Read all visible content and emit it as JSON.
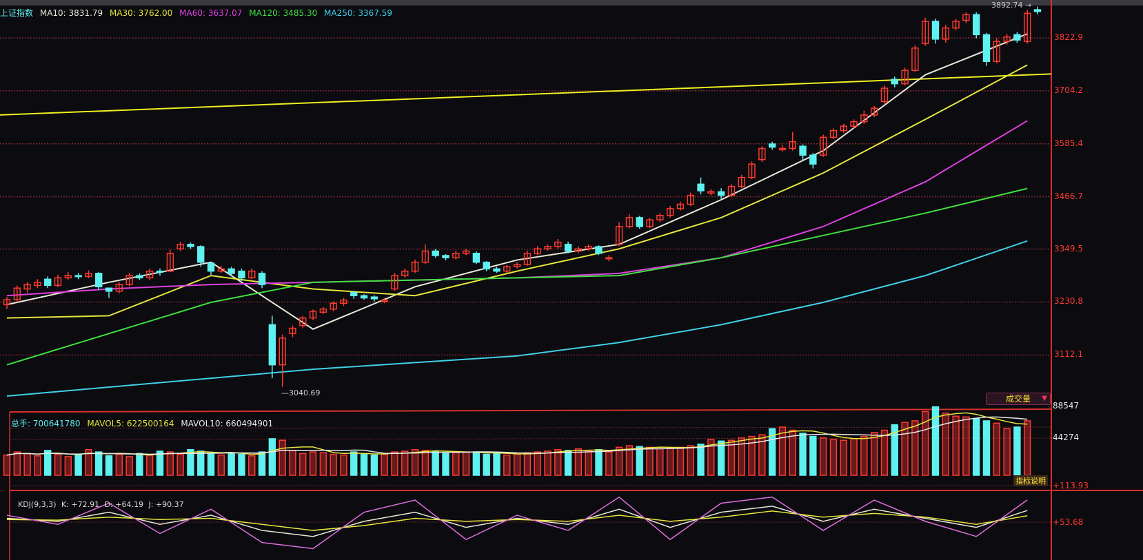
{
  "header": {
    "index_name": "上证指数",
    "ma_labels": [
      {
        "text": "MA10: 3831.79",
        "color": "#e8e8d8"
      },
      {
        "text": "MA30: 3762.00",
        "color": "#e6e63c"
      },
      {
        "text": "MA60: 3637.07",
        "color": "#e040e0"
      },
      {
        "text": "MA120: 3485.30",
        "color": "#40e040"
      },
      {
        "text": "MA250: 3367.59",
        "color": "#40d0e8"
      }
    ]
  },
  "volume_panel": {
    "total_label": "总手: 700641780",
    "mavol5_label": "MAVOL5: 622500164",
    "mavol10_label": "MAVOL10: 660494901",
    "selector_label": "成交量",
    "axis_ticks": [
      "88547",
      "44274"
    ]
  },
  "kdj_panel": {
    "title": "KDJ(9,3,3)",
    "k_label": "K: +72.91",
    "d_label": "D: +64.19",
    "j_label": "J: +90.37",
    "help_label": "指标说明",
    "axis_ticks": [
      "+113.93",
      "+53.68"
    ]
  },
  "colors": {
    "up": "#ff3b2f",
    "down": "#5ff0f0",
    "grid": "#7a2a2a",
    "axis": "#d8302a",
    "trendline": "#f0f020"
  },
  "chart_data": {
    "type": "candlestick",
    "price_axis_ticks": [
      "3822.9",
      "3704.2",
      "3585.4",
      "3466.7",
      "3349.5",
      "3230.8",
      "3112.1"
    ],
    "price_axis_values": [
      3822.9,
      3704.2,
      3585.4,
      3466.7,
      3349.5,
      3230.8,
      3112.1
    ],
    "ylim": [
      3020,
      3900
    ],
    "high_annotation": {
      "value": 3892.74,
      "label": "3892.74"
    },
    "low_annotation": {
      "value": 3040.69,
      "label": "3040.69"
    },
    "trendline": [
      3650,
      3742
    ],
    "ohlc": [
      [
        3225,
        3242,
        3215,
        3236
      ],
      [
        3236,
        3268,
        3230,
        3262
      ],
      [
        3260,
        3276,
        3252,
        3270
      ],
      [
        3268,
        3282,
        3262,
        3275
      ],
      [
        3282,
        3288,
        3262,
        3268
      ],
      [
        3268,
        3292,
        3264,
        3285
      ],
      [
        3285,
        3298,
        3280,
        3290
      ],
      [
        3290,
        3296,
        3282,
        3288
      ],
      [
        3288,
        3302,
        3284,
        3295
      ],
      [
        3295,
        3298,
        3258,
        3265
      ],
      [
        3262,
        3262,
        3240,
        3255
      ],
      [
        3255,
        3276,
        3250,
        3270
      ],
      [
        3270,
        3296,
        3266,
        3290
      ],
      [
        3290,
        3295,
        3280,
        3285
      ],
      [
        3285,
        3306,
        3280,
        3300
      ],
      [
        3300,
        3306,
        3290,
        3298
      ],
      [
        3300,
        3348,
        3298,
        3340
      ],
      [
        3350,
        3366,
        3345,
        3360
      ],
      [
        3360,
        3364,
        3350,
        3355
      ],
      [
        3355,
        3358,
        3310,
        3320
      ],
      [
        3318,
        3312,
        3292,
        3300
      ],
      [
        3300,
        3312,
        3296,
        3305
      ],
      [
        3305,
        3310,
        3288,
        3295
      ],
      [
        3300,
        3306,
        3278,
        3285
      ],
      [
        3285,
        3306,
        3282,
        3300
      ],
      [
        3295,
        3300,
        3262,
        3270
      ],
      [
        3180,
        3200,
        3060,
        3090
      ],
      [
        3090,
        3158,
        3040.69,
        3150
      ],
      [
        3160,
        3178,
        3152,
        3172
      ],
      [
        3178,
        3200,
        3172,
        3195
      ],
      [
        3195,
        3214,
        3190,
        3210
      ],
      [
        3208,
        3220,
        3204,
        3215
      ],
      [
        3215,
        3232,
        3210,
        3228
      ],
      [
        3228,
        3240,
        3222,
        3235
      ],
      [
        3252,
        3256,
        3238,
        3245
      ],
      [
        3245,
        3248,
        3236,
        3240
      ],
      [
        3242,
        3246,
        3232,
        3238
      ],
      [
        3232,
        3240,
        3228,
        3235
      ],
      [
        3260,
        3296,
        3256,
        3290
      ],
      [
        3290,
        3306,
        3285,
        3300
      ],
      [
        3300,
        3326,
        3296,
        3320
      ],
      [
        3320,
        3360,
        3316,
        3345
      ],
      [
        3345,
        3350,
        3330,
        3335
      ],
      [
        3335,
        3338,
        3324,
        3330
      ],
      [
        3330,
        3346,
        3326,
        3340
      ],
      [
        3340,
        3350,
        3336,
        3345
      ],
      [
        3340,
        3344,
        3316,
        3320
      ],
      [
        3320,
        3322,
        3300,
        3305
      ],
      [
        3305,
        3310,
        3296,
        3300
      ],
      [
        3300,
        3314,
        3296,
        3310
      ],
      [
        3310,
        3320,
        3306,
        3315
      ],
      [
        3315,
        3346,
        3312,
        3340
      ],
      [
        3340,
        3356,
        3336,
        3350
      ],
      [
        3350,
        3360,
        3346,
        3355
      ],
      [
        3355,
        3372,
        3350,
        3365
      ],
      [
        3360,
        3366,
        3340,
        3345
      ],
      [
        3345,
        3356,
        3340,
        3350
      ],
      [
        3350,
        3360,
        3346,
        3355
      ],
      [
        3355,
        3358,
        3336,
        3340
      ],
      [
        3330,
        3336,
        3322,
        3330
      ],
      [
        3360,
        3410,
        3356,
        3400
      ],
      [
        3400,
        3428,
        3396,
        3420
      ],
      [
        3420,
        3424,
        3395,
        3400
      ],
      [
        3400,
        3420,
        3396,
        3415
      ],
      [
        3415,
        3430,
        3410,
        3425
      ],
      [
        3425,
        3446,
        3420,
        3440
      ],
      [
        3440,
        3456,
        3436,
        3450
      ],
      [
        3450,
        3476,
        3446,
        3470
      ],
      [
        3495,
        3510,
        3472,
        3480
      ],
      [
        3475,
        3484,
        3470,
        3478
      ],
      [
        3478,
        3486,
        3462,
        3470
      ],
      [
        3470,
        3496,
        3466,
        3490
      ],
      [
        3490,
        3516,
        3486,
        3510
      ],
      [
        3510,
        3546,
        3506,
        3540
      ],
      [
        3550,
        3580,
        3545,
        3575
      ],
      [
        3585,
        3590,
        3572,
        3578
      ],
      [
        3572,
        3582,
        3568,
        3575
      ],
      [
        3575,
        3612,
        3570,
        3590
      ],
      [
        3580,
        3584,
        3548,
        3560
      ],
      [
        3560,
        3565,
        3530,
        3540
      ],
      [
        3560,
        3606,
        3556,
        3600
      ],
      [
        3600,
        3620,
        3596,
        3615
      ],
      [
        3615,
        3630,
        3610,
        3625
      ],
      [
        3625,
        3640,
        3620,
        3635
      ],
      [
        3635,
        3660,
        3630,
        3650
      ],
      [
        3650,
        3670,
        3645,
        3665
      ],
      [
        3680,
        3716,
        3675,
        3710
      ],
      [
        3730,
        3736,
        3712,
        3720
      ],
      [
        3720,
        3756,
        3716,
        3750
      ],
      [
        3750,
        3806,
        3746,
        3800
      ],
      [
        3810,
        3868,
        3805,
        3860
      ],
      [
        3860,
        3866,
        3810,
        3820
      ],
      [
        3820,
        3852,
        3812,
        3845
      ],
      [
        3845,
        3866,
        3840,
        3860
      ],
      [
        3862,
        3880,
        3856,
        3875
      ],
      [
        3875,
        3880,
        3822,
        3830
      ],
      [
        3830,
        3834,
        3760,
        3770
      ],
      [
        3770,
        3822,
        3766,
        3815
      ],
      [
        3815,
        3832,
        3808,
        3825
      ],
      [
        3830,
        3836,
        3812,
        3818
      ],
      [
        3815,
        3885,
        3810,
        3878
      ],
      [
        3886,
        3892.74,
        3876,
        3882
      ]
    ],
    "volume": [
      26000,
      30000,
      28000,
      25000,
      32000,
      27000,
      24000,
      26000,
      33000,
      30000,
      25000,
      27000,
      24000,
      28000,
      26000,
      31000,
      30000,
      27000,
      33000,
      31000,
      28000,
      26000,
      29000,
      27000,
      25000,
      30000,
      47000,
      45000,
      32000,
      28000,
      30000,
      29000,
      27000,
      26000,
      30000,
      28000,
      26000,
      27000,
      30000,
      31000,
      33000,
      32000,
      31000,
      28000,
      29000,
      30000,
      30000,
      27000,
      28000,
      26000,
      27000,
      29000,
      30000,
      31000,
      33000,
      32000,
      34000,
      31000,
      33000,
      30000,
      36000,
      38000,
      37000,
      36000,
      34000,
      35000,
      36000,
      38000,
      40000,
      46000,
      44000,
      45000,
      48000,
      50000,
      52000,
      60000,
      62000,
      58000,
      54000,
      50000,
      48000,
      46000,
      45000,
      47000,
      50000,
      55000,
      58000,
      65000,
      68000,
      70000,
      82000,
      88000,
      80000,
      76000,
      75000,
      73000,
      70000,
      67000,
      60000,
      62000,
      70000
    ],
    "volume_axis_max": 88547,
    "moving_averages": {
      "sample_every": 10,
      "series": [
        {
          "name": "MA10",
          "color": "#e8e8d8",
          "values": [
            3225,
            3275,
            3320,
            3170,
            3265,
            3325,
            3360,
            3460,
            3570,
            3740,
            3831.79
          ]
        },
        {
          "name": "MA30",
          "color": "#e6e63c",
          "values": [
            3195,
            3200,
            3290,
            3260,
            3245,
            3300,
            3350,
            3420,
            3520,
            3640,
            3762.0
          ]
        },
        {
          "name": "MA60",
          "color": "#e040e0",
          "values": [
            3245,
            3260,
            3270,
            3275,
            3280,
            3285,
            3295,
            3330,
            3400,
            3500,
            3637.07
          ]
        },
        {
          "name": "MA120",
          "color": "#40e040",
          "values": [
            3090,
            3160,
            3230,
            3275,
            3280,
            3285,
            3290,
            3330,
            3380,
            3430,
            3485.3
          ]
        },
        {
          "name": "MA250",
          "color": "#40d0e8",
          "values": [
            3020,
            3040,
            3060,
            3080,
            3095,
            3110,
            3140,
            3180,
            3230,
            3290,
            3367.59
          ]
        }
      ]
    },
    "kdj": {
      "sample_every": 5,
      "K": [
        60,
        55,
        70,
        50,
        65,
        40,
        30,
        55,
        70,
        45,
        60,
        50,
        75,
        45,
        70,
        80,
        55,
        75,
        60,
        45,
        72.91
      ],
      "D": [
        58,
        57,
        62,
        58,
        60,
        50,
        40,
        48,
        60,
        55,
        58,
        55,
        65,
        55,
        62,
        72,
        62,
        68,
        62,
        50,
        64.19
      ],
      "J": [
        65,
        50,
        85,
        35,
        75,
        20,
        10,
        70,
        90,
        25,
        65,
        40,
        95,
        25,
        85,
        95,
        40,
        90,
        55,
        30,
        90.37
      ],
      "colors": {
        "K": "#e8e8d8",
        "D": "#e6e63c",
        "J": "#e070e0"
      }
    }
  }
}
